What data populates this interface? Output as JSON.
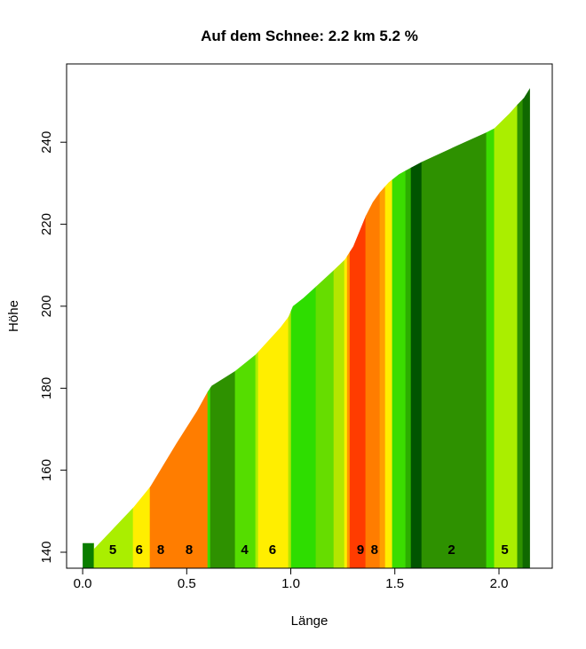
{
  "page": {
    "background": "#ffffff"
  },
  "chart_data": {
    "type": "area",
    "title": "Auf dem Schnee: 2.2 km 5.2 %",
    "xlabel": "Länge",
    "ylabel": "Höhe",
    "climb_name": "Auf dem Schnee",
    "climb_length_km": 2.2,
    "climb_avg_grade_pct": 5.2,
    "grid": false,
    "legend": false,
    "xlim": [
      -0.077,
      2.256
    ],
    "ylim": [
      136.1,
      259.1
    ],
    "x_ticks": [
      {
        "v": 0.0,
        "label": "0.0"
      },
      {
        "v": 0.5,
        "label": "0.5"
      },
      {
        "v": 1.0,
        "label": "1.0"
      },
      {
        "v": 1.5,
        "label": "1.5"
      },
      {
        "v": 2.0,
        "label": "2.0"
      }
    ],
    "y_ticks": [
      {
        "v": 140,
        "label": "140"
      },
      {
        "v": 160,
        "label": "160"
      },
      {
        "v": 180,
        "label": "180"
      },
      {
        "v": 200,
        "label": "200"
      },
      {
        "v": 220,
        "label": "220"
      },
      {
        "v": 240,
        "label": "240"
      }
    ],
    "axis_color": "#000000",
    "gradient_label_color": "#00008b",
    "profile": [
      [
        0.0,
        142.2
      ],
      [
        0.055,
        142.2
      ],
      [
        0.055,
        140.8
      ],
      [
        0.245,
        151.0
      ],
      [
        0.325,
        156.0
      ],
      [
        0.45,
        166.5
      ],
      [
        0.55,
        174.5
      ],
      [
        0.601,
        179.2
      ],
      [
        0.62,
        180.6
      ],
      [
        0.733,
        184.2
      ],
      [
        0.831,
        188.2
      ],
      [
        0.95,
        194.8
      ],
      [
        0.989,
        197.4
      ],
      [
        1.01,
        200.0
      ],
      [
        1.06,
        202.0
      ],
      [
        1.121,
        204.8
      ],
      [
        1.207,
        208.8
      ],
      [
        1.26,
        211.4
      ],
      [
        1.3,
        214.6
      ],
      [
        1.36,
        222.0
      ],
      [
        1.394,
        225.4
      ],
      [
        1.428,
        227.8
      ],
      [
        1.47,
        230.2
      ],
      [
        1.52,
        232.2
      ],
      [
        1.578,
        233.8
      ],
      [
        1.629,
        235.2
      ],
      [
        1.8,
        239.2
      ],
      [
        1.94,
        242.4
      ],
      [
        1.978,
        243.4
      ],
      [
        2.05,
        247.0
      ],
      [
        2.089,
        249.2
      ],
      [
        2.12,
        250.8
      ],
      [
        2.149,
        253.2
      ]
    ],
    "stripes": [
      [
        0.0,
        0.055,
        "#0a7d00"
      ],
      [
        0.055,
        0.243,
        "#aaee00"
      ],
      [
        0.243,
        0.324,
        "#ffee00"
      ],
      [
        0.324,
        0.601,
        "#ff7d00"
      ],
      [
        0.601,
        0.614,
        "#3bdc00"
      ],
      [
        0.614,
        0.733,
        "#2e9100"
      ],
      [
        0.733,
        0.831,
        "#55dd00"
      ],
      [
        0.831,
        0.844,
        "#aaee00"
      ],
      [
        0.844,
        0.989,
        "#ffee00"
      ],
      [
        0.989,
        1.002,
        "#b4e600"
      ],
      [
        1.002,
        1.121,
        "#2edd00"
      ],
      [
        1.121,
        1.207,
        "#66dd00"
      ],
      [
        1.207,
        1.258,
        "#b4e600"
      ],
      [
        1.258,
        1.271,
        "#ffee00"
      ],
      [
        1.271,
        1.284,
        "#ff9900"
      ],
      [
        1.284,
        1.36,
        "#ff3c00"
      ],
      [
        1.36,
        1.428,
        "#ff7d00"
      ],
      [
        1.428,
        1.454,
        "#ffa000"
      ],
      [
        1.454,
        1.488,
        "#ffee00"
      ],
      [
        1.488,
        1.552,
        "#3bdc00"
      ],
      [
        1.552,
        1.578,
        "#2cae00"
      ],
      [
        1.578,
        1.629,
        "#005400"
      ],
      [
        1.629,
        1.94,
        "#2e9100"
      ],
      [
        1.94,
        1.978,
        "#3bdc00"
      ],
      [
        1.978,
        2.089,
        "#aaee00"
      ],
      [
        2.089,
        2.115,
        "#2e9100"
      ],
      [
        2.115,
        2.149,
        "#0f6800"
      ]
    ],
    "gradient_labels": [
      {
        "x": 0.145,
        "text": "5"
      },
      {
        "x": 0.272,
        "text": "6"
      },
      {
        "x": 0.375,
        "text": "8"
      },
      {
        "x": 0.512,
        "text": "8"
      },
      {
        "x": 0.778,
        "text": "4"
      },
      {
        "x": 0.912,
        "text": "6"
      },
      {
        "x": 1.335,
        "text": "9"
      },
      {
        "x": 1.402,
        "text": "8"
      },
      {
        "x": 1.772,
        "text": "2"
      },
      {
        "x": 2.028,
        "text": "5"
      }
    ],
    "segments_pct": [
      {
        "from_km": 0.05,
        "to_km": 0.25,
        "grade": 5
      },
      {
        "from_km": 0.25,
        "to_km": 0.32,
        "grade": 6
      },
      {
        "from_km": 0.32,
        "to_km": 0.45,
        "grade": 8
      },
      {
        "from_km": 0.45,
        "to_km": 0.6,
        "grade": 8
      },
      {
        "from_km": 0.7,
        "to_km": 0.83,
        "grade": 4
      },
      {
        "from_km": 0.84,
        "to_km": 0.99,
        "grade": 6
      },
      {
        "from_km": 1.28,
        "to_km": 1.36,
        "grade": 9
      },
      {
        "from_km": 1.36,
        "to_km": 1.43,
        "grade": 8
      },
      {
        "from_km": 1.63,
        "to_km": 1.94,
        "grade": 2
      },
      {
        "from_km": 1.98,
        "to_km": 2.09,
        "grade": 5
      }
    ]
  }
}
